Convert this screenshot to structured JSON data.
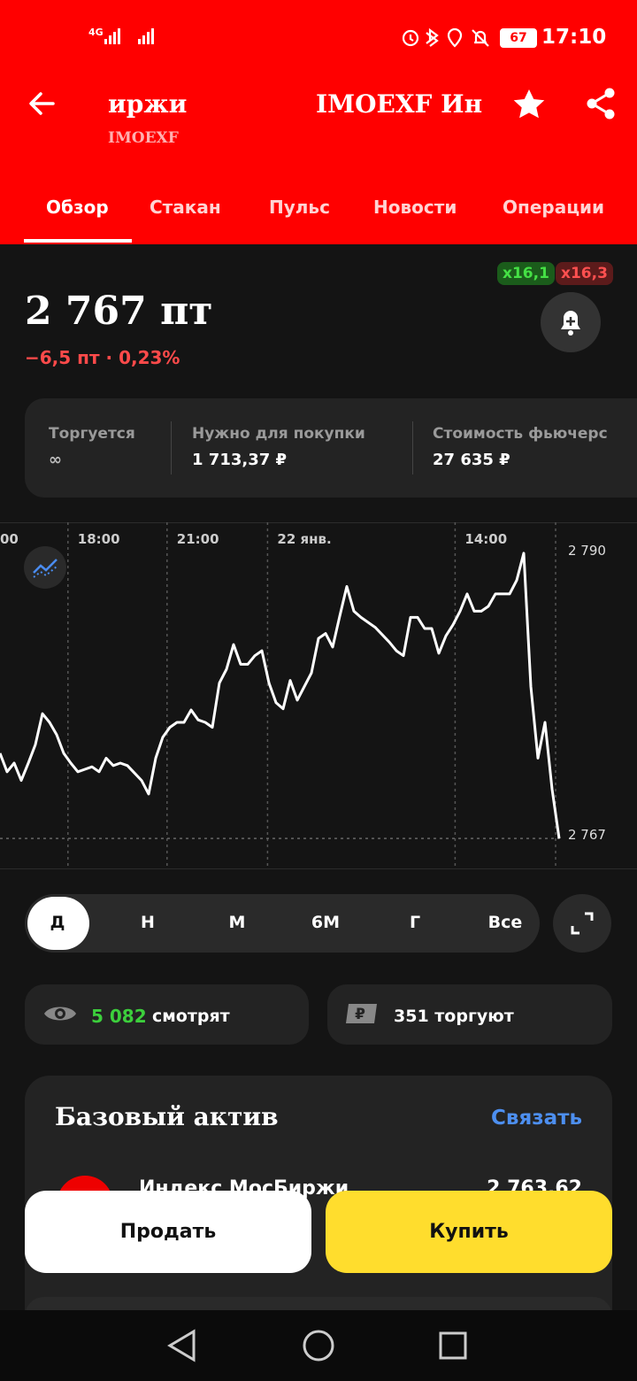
{
  "status_bar": {
    "network": "4G",
    "battery": "67",
    "time": "17:10"
  },
  "header": {
    "back_title": "иржи",
    "title": "IMOEXF Ин",
    "subtitle": "IMOEXF"
  },
  "tabs": [
    "Обзор",
    "Стакан",
    "Пульс",
    "Новости",
    "Операции"
  ],
  "quote": {
    "price": "2 767 пт",
    "change": "−6,5 пт · 0,23%",
    "leverage_long": "x16,1",
    "leverage_short": "x16,3"
  },
  "info": [
    {
      "label": "Торгуется",
      "value": "∞"
    },
    {
      "label": "Нужно для покупки",
      "value": "1 713,37 ₽"
    },
    {
      "label": "Стоимость фьючерс",
      "value": "27 635 ₽"
    }
  ],
  "chart_data": {
    "type": "line",
    "color": "#ffffff",
    "values": [
      2773.6,
      2772.1,
      2772.8,
      2771.4,
      2772.8,
      2774.3,
      2776.8,
      2776.1,
      2775.1,
      2773.6,
      2772.8,
      2772.1,
      2772.3,
      2772.5,
      2772.1,
      2773.2,
      2772.6,
      2772.8,
      2772.6,
      2772.0,
      2771.4,
      2770.3,
      2773.2,
      2774.9,
      2775.7,
      2776.1,
      2776.1,
      2777.1,
      2776.3,
      2776.1,
      2775.7,
      2779.3,
      2780.4,
      2782.4,
      2780.8,
      2780.8,
      2781.5,
      2781.9,
      2779.3,
      2777.7,
      2777.2,
      2779.5,
      2777.9,
      2779.0,
      2780.1,
      2782.9,
      2783.3,
      2782.2,
      2784.7,
      2787.1,
      2785.1,
      2784.6,
      2784.2,
      2783.8,
      2783.2,
      2782.6,
      2781.9,
      2781.5,
      2784.6,
      2784.6,
      2783.7,
      2783.7,
      2781.7,
      2783.1,
      2784.0,
      2785.1,
      2786.5,
      2785.1,
      2785.1,
      2785.5,
      2786.5,
      2786.5,
      2786.5,
      2787.6,
      2789.8,
      2779.0,
      2773.2,
      2776.1,
      2770.7,
      2766.7
    ],
    "xlim": [
      0,
      90
    ],
    "xticks": [
      {
        "value": -1.5,
        "label": "00"
      },
      {
        "value": 9.6,
        "label": "18:00"
      },
      {
        "value": 23.6,
        "label": "21:00"
      },
      {
        "value": 37.8,
        "label": "22 янв."
      },
      {
        "value": 64.3,
        "label": "14:00"
      }
    ],
    "ylim": [
      2764.2,
      2792.3
    ],
    "yticks": [
      {
        "value": 2790,
        "label": "2 790"
      },
      {
        "value": 2767,
        "label": "2 767"
      }
    ]
  },
  "periods": [
    "Д",
    "Н",
    "М",
    "6М",
    "Г",
    "Все"
  ],
  "stats": {
    "watching_count": "5 082",
    "watching_label": "смотрят",
    "trading": "351 торгуют"
  },
  "base_asset": {
    "title": "Базовый актив",
    "action": "Связать",
    "name": "Индекс МосБиржи",
    "value": "2 763,62"
  },
  "actions": {
    "sell": "Продать",
    "buy": "Купить"
  }
}
